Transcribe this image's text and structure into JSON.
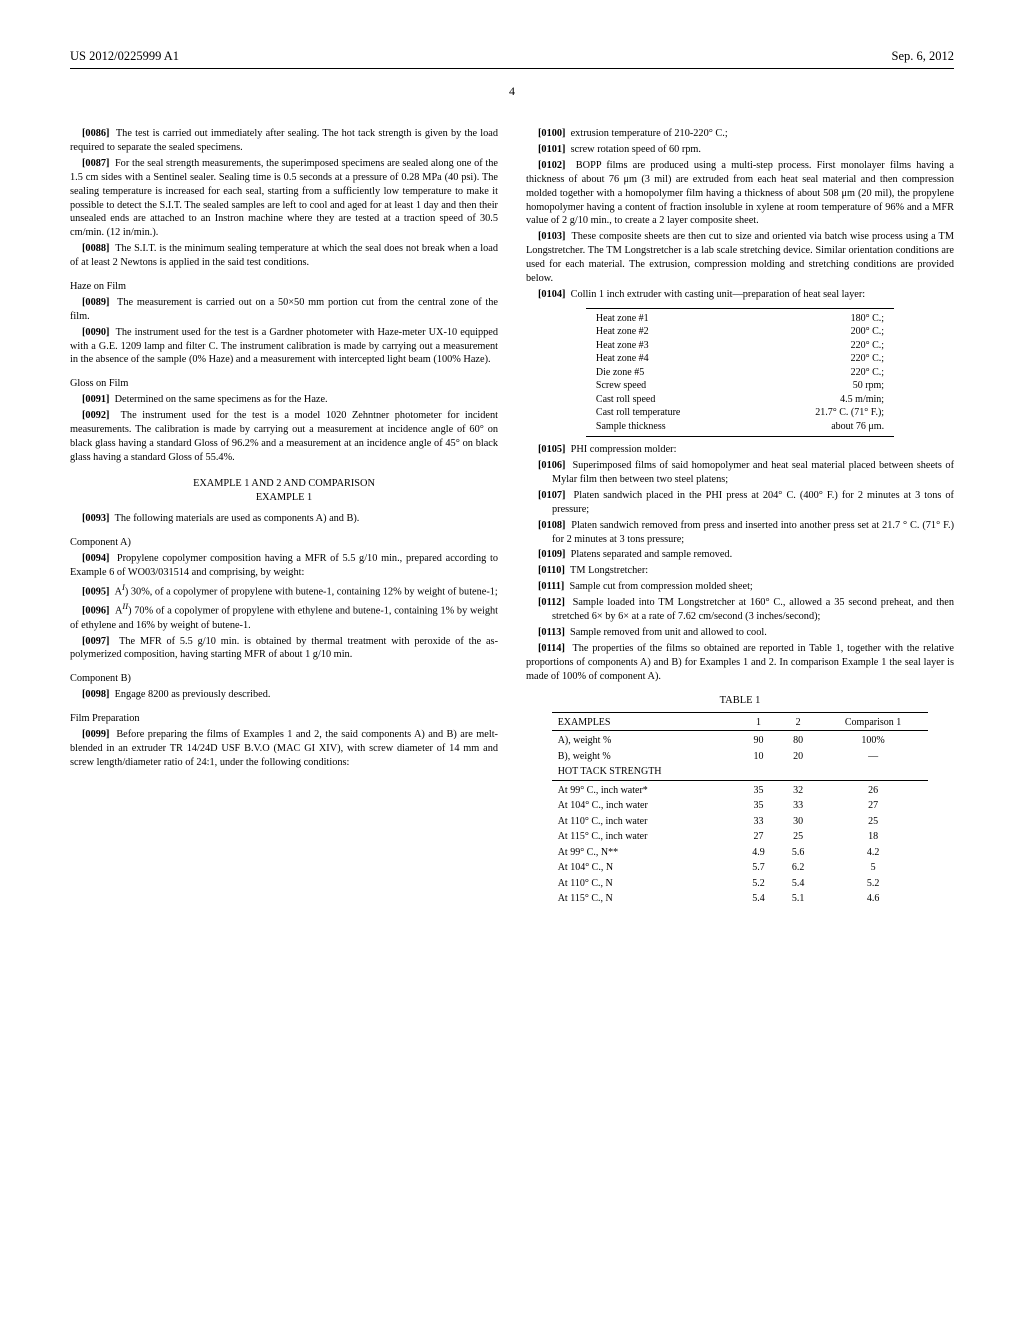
{
  "header": {
    "pub_number": "US 2012/0225999 A1",
    "pub_date": "Sep. 6, 2012",
    "page_number": "4"
  },
  "left": {
    "p0086": "The test is carried out immediately after sealing. The hot tack strength is given by the load required to separate the sealed specimens.",
    "p0087": "For the seal strength measurements, the superimposed specimens are sealed along one of the 1.5 cm sides with a Sentinel sealer. Sealing time is 0.5 seconds at a pressure of 0.28 MPa (40 psi). The sealing temperature is increased for each seal, starting from a sufficiently low temperature to make it possible to detect the S.I.T. The sealed samples are left to cool and aged for at least 1 day and then their unsealed ends are attached to an Instron machine where they are tested at a traction speed of 30.5 cm/min. (12 in/min.).",
    "p0088": "The S.I.T. is the minimum sealing temperature at which the seal does not break when a load of at least 2 Newtons is applied in the said test conditions.",
    "haze_head": "Haze on Film",
    "p0089": "The measurement is carried out on a 50×50 mm portion cut from the central zone of the film.",
    "p0090": "The instrument used for the test is a Gardner photometer with Haze-meter UX-10 equipped with a G.E. 1209 lamp and filter C. The instrument calibration is made by carrying out a measurement in the absence of the sample (0% Haze) and a measurement with intercepted light beam (100% Haze).",
    "gloss_head": "Gloss on Film",
    "p0091": "Determined on the same specimens as for the Haze.",
    "p0092": "The instrument used for the test is a model 1020 Zehntner photometer for incident measurements. The calibration is made by carrying out a measurement at incidence angle of 60° on black glass having a standard Gloss of 96.2% and a measurement at an incidence angle of 45° on black glass having a standard Gloss of 55.4%.",
    "example_head_line1": "EXAMPLE 1 AND 2 AND COMPARISON",
    "example_head_line2": "EXAMPLE 1",
    "p0093": "The following materials are used as components A) and B).",
    "compA_head": "Component A)",
    "p0094": "Propylene copolymer composition having a MFR of 5.5 g/10 min., prepared according to Example 6 of WO03/031514 and comprising, by weight:",
    "p0095pre": "A",
    "p0095sup": "I",
    "p0095post": ") 30%, of a copolymer of propylene with butene-1, containing 12% by weight of butene-1;",
    "p0096pre": "A",
    "p0096sup": "II",
    "p0096post": ") 70% of a copolymer of propylene with ethylene and butene-1, containing 1% by weight of ethylene and 16% by weight of butene-1.",
    "p0097": "The MFR of 5.5 g/10 min. is obtained by thermal treatment with peroxide of the as-polymerized composition, having starting MFR of about 1 g/10 min.",
    "compB_head": "Component B)",
    "p0098": "Engage 8200 as previously described.",
    "film_prep_head": "Film Preparation",
    "p0099": "Before preparing the films of Examples 1 and 2, the said components A) and B) are melt-blended in an extruder TR 14/24D USF B.V.O (MAC GI XIV), with screw diameter of 14 mm and screw length/diameter ratio of 24:1, under the following conditions:"
  },
  "right": {
    "p0100": "extrusion temperature of 210-220° C.;",
    "p0101": "screw rotation speed of 60 rpm.",
    "p0102": "BOPP films are produced using a multi-step process. First monolayer films having a thickness of about 76 μm (3 mil) are extruded from each heat seal material and then compression molded together with a homopolymer film having a thickness of about 508 μm (20 mil), the propylene homopolymer having a content of fraction insoluble in xylene at room temperature of 96% and a MFR value of 2 g/10 min., to create a 2 layer composite sheet.",
    "p0103": "These composite sheets are then cut to size and oriented via batch wise process using a TM Longstretcher. The TM Longstretcher is a lab scale stretching device. Similar orientation conditions are used for each material. The extrusion, compression molding and stretching conditions are provided below.",
    "p0104": "Collin 1 inch extruder with casting unit—preparation of heat seal layer:",
    "small_table": {
      "rows": [
        [
          "Heat zone #1",
          "180° C.;"
        ],
        [
          "Heat zone #2",
          "200° C.;"
        ],
        [
          "Heat zone #3",
          "220° C.;"
        ],
        [
          "Heat zone #4",
          "220° C.;"
        ],
        [
          "Die zone #5",
          "220° C.;"
        ],
        [
          "Screw speed",
          "50 rpm;"
        ],
        [
          "Cast roll speed",
          "4.5 m/min;"
        ],
        [
          "Cast roll temperature",
          "21.7° C. (71° F.);"
        ],
        [
          "Sample thickness",
          "about 76 μm."
        ]
      ]
    },
    "p0105": "PHI compression molder:",
    "p0106": "Superimposed films of said homopolymer and heat seal material placed between sheets of Mylar film then between two steel platens;",
    "p0107": "Platen sandwich placed in the PHI press at 204° C. (400° F.) for 2 minutes at 3 tons of pressure;",
    "p0108": "Platen sandwich removed from press and inserted into another press set at 21.7 ° C. (71° F.) for 2 minutes at 3 tons pressure;",
    "p0109": "Platens separated and sample removed.",
    "p0110": "TM Longstretcher:",
    "p0111": "Sample cut from compression molded sheet;",
    "p0112": "Sample loaded into TM Longstretcher at 160° C., allowed a 35 second preheat, and then stretched 6× by 6× at a rate of 7.62 cm/second (3 inches/second);",
    "p0113": "Sample removed from unit and allowed to cool.",
    "p0114": "The properties of the films so obtained are reported in Table 1, together with the relative proportions of components A) and B) for Examples 1 and 2. In comparison Example 1 the seal layer is made of 100% of component A).",
    "table1": {
      "caption": "TABLE 1",
      "head": [
        "EXAMPLES",
        "1",
        "2",
        "Comparison 1"
      ],
      "rows_top": [
        [
          "A), weight %",
          "90",
          "80",
          "100%"
        ],
        [
          "B), weight %",
          "10",
          "20",
          "—"
        ],
        [
          "HOT TACK STRENGTH",
          "",
          "",
          ""
        ]
      ],
      "rows_body": [
        [
          "At 99° C., inch water*",
          "35",
          "32",
          "26"
        ],
        [
          "At 104° C., inch water",
          "35",
          "33",
          "27"
        ],
        [
          "At 110° C., inch water",
          "33",
          "30",
          "25"
        ],
        [
          "At 115° C., inch water",
          "27",
          "25",
          "18"
        ],
        [
          "At 99° C., N**",
          "4.9",
          "5.6",
          "4.2"
        ],
        [
          "At 104° C., N",
          "5.7",
          "6.2",
          "5"
        ],
        [
          "At 110° C., N",
          "5.2",
          "5.4",
          "5.2"
        ],
        [
          "At 115° C., N",
          "5.4",
          "5.1",
          "4.6"
        ]
      ]
    }
  }
}
